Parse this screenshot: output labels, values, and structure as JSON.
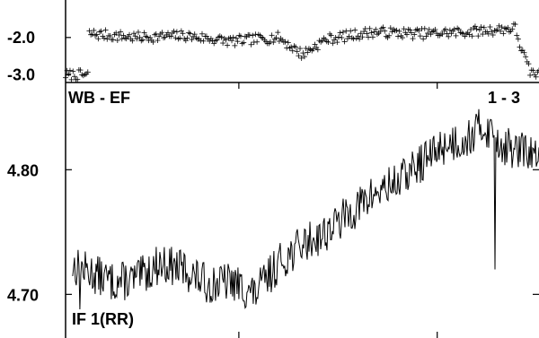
{
  "chart_data": [
    {
      "type": "scatter",
      "panel": "top",
      "title": "",
      "xlabel": "",
      "ylabel": "",
      "ylim": [
        -3.2,
        -1.0
      ],
      "yticks": [
        -2.0,
        -3.0
      ],
      "ytick_labels": [
        "-2.0",
        "-3.0"
      ],
      "marker": "+",
      "series": [
        {
          "x": [
            0.05,
            0.15,
            0.25,
            0.35,
            0.45,
            0.5,
            0.55,
            0.65,
            0.75,
            0.85,
            0.95,
            0.96,
            0.98,
            1.0
          ],
          "y": [
            -1.9,
            -2.0,
            -1.95,
            -2.1,
            -2.0,
            -2.45,
            -2.05,
            -1.85,
            -1.9,
            -1.85,
            -1.75,
            -2.2,
            -2.9,
            -3.0
          ]
        }
      ]
    },
    {
      "type": "line",
      "panel": "bottom",
      "title": "",
      "xlabel": "",
      "ylabel": "",
      "ylim": [
        4.665,
        4.87
      ],
      "yticks": [
        4.7,
        4.8
      ],
      "ytick_labels": [
        "4.70",
        "4.80"
      ],
      "labels": {
        "top_left": "WB - EF",
        "top_right": "1 - 3",
        "bottom_left": "IF 1(RR)"
      },
      "series": [
        {
          "x": [
            0.0,
            0.05,
            0.1,
            0.15,
            0.2,
            0.25,
            0.3,
            0.35,
            0.4,
            0.45,
            0.5,
            0.55,
            0.6,
            0.65,
            0.7,
            0.75,
            0.8,
            0.85,
            0.88,
            0.9,
            0.92,
            0.95,
            0.97,
            1.0
          ],
          "y": [
            4.725,
            4.718,
            4.71,
            4.712,
            4.725,
            4.72,
            4.708,
            4.71,
            4.7,
            4.725,
            4.74,
            4.75,
            4.765,
            4.78,
            4.79,
            4.805,
            4.82,
            4.825,
            4.835,
            4.83,
            4.82,
            4.815,
            4.815,
            4.81
          ]
        }
      ]
    }
  ]
}
